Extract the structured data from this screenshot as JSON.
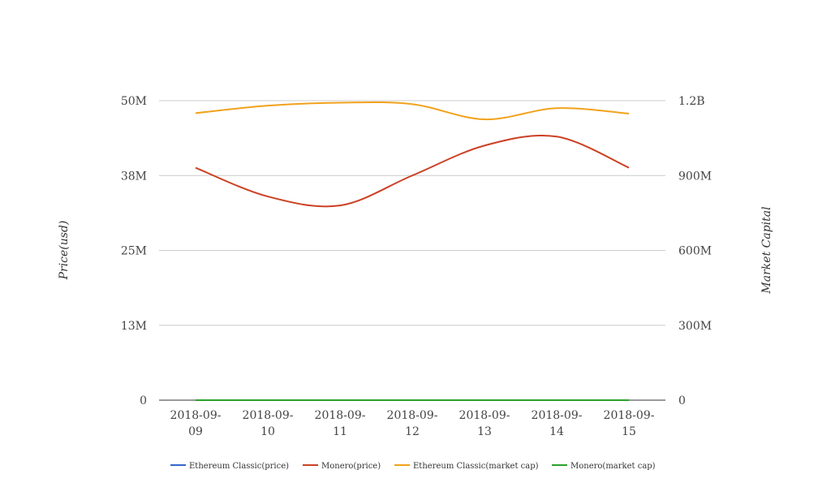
{
  "chart_data": {
    "type": "line",
    "categories": [
      "2018-09-09",
      "2018-09-10",
      "2018-09-11",
      "2018-09-12",
      "2018-09-13",
      "2018-09-14",
      "2018-09-15"
    ],
    "x_tick_labels": [
      [
        "2018-09-",
        "09"
      ],
      [
        "2018-09-",
        "10"
      ],
      [
        "2018-09-",
        "11"
      ],
      [
        "2018-09-",
        "12"
      ],
      [
        "2018-09-",
        "13"
      ],
      [
        "2018-09-",
        "14"
      ],
      [
        "2018-09-",
        "15"
      ]
    ],
    "ylabel_left": "Price(usd)",
    "ylabel_right": "Market Capital",
    "y_left": {
      "min": 0,
      "max": 50000000,
      "ticks": [
        0,
        12500000,
        25000000,
        37500000,
        50000000
      ],
      "tick_labels": [
        "0",
        "13M",
        "25M",
        "38M",
        "50M"
      ]
    },
    "y_right": {
      "min": 0,
      "max": 1200000000,
      "ticks": [
        0,
        300000000,
        600000000,
        900000000,
        1200000000
      ],
      "tick_labels": [
        "0",
        "300M",
        "600M",
        "900M",
        "1.2B"
      ]
    },
    "grid": true,
    "legend_position": "bottom",
    "series": [
      {
        "name": "Ethereum Classic(price)",
        "axis": "left",
        "color": "#3366cc",
        "values": [
          12,
          12,
          12,
          12,
          11,
          11,
          11
        ]
      },
      {
        "name": "Monero(price)",
        "axis": "left",
        "color": "#cc4125",
        "values": [
          38800000,
          34000000,
          32500000,
          37500000,
          42500000,
          44000000,
          38800000
        ]
      },
      {
        "name": "Ethereum Classic(market cap)",
        "axis": "right",
        "color": "#f1a21c",
        "values": [
          1150000000,
          1180000000,
          1192000000,
          1186000000,
          1125000000,
          1170000000,
          1148000000
        ]
      },
      {
        "name": "Monero(market cap)",
        "axis": "right",
        "color": "#2ca02c",
        "values": [
          180,
          175,
          170,
          180,
          190,
          190,
          180
        ]
      }
    ]
  }
}
